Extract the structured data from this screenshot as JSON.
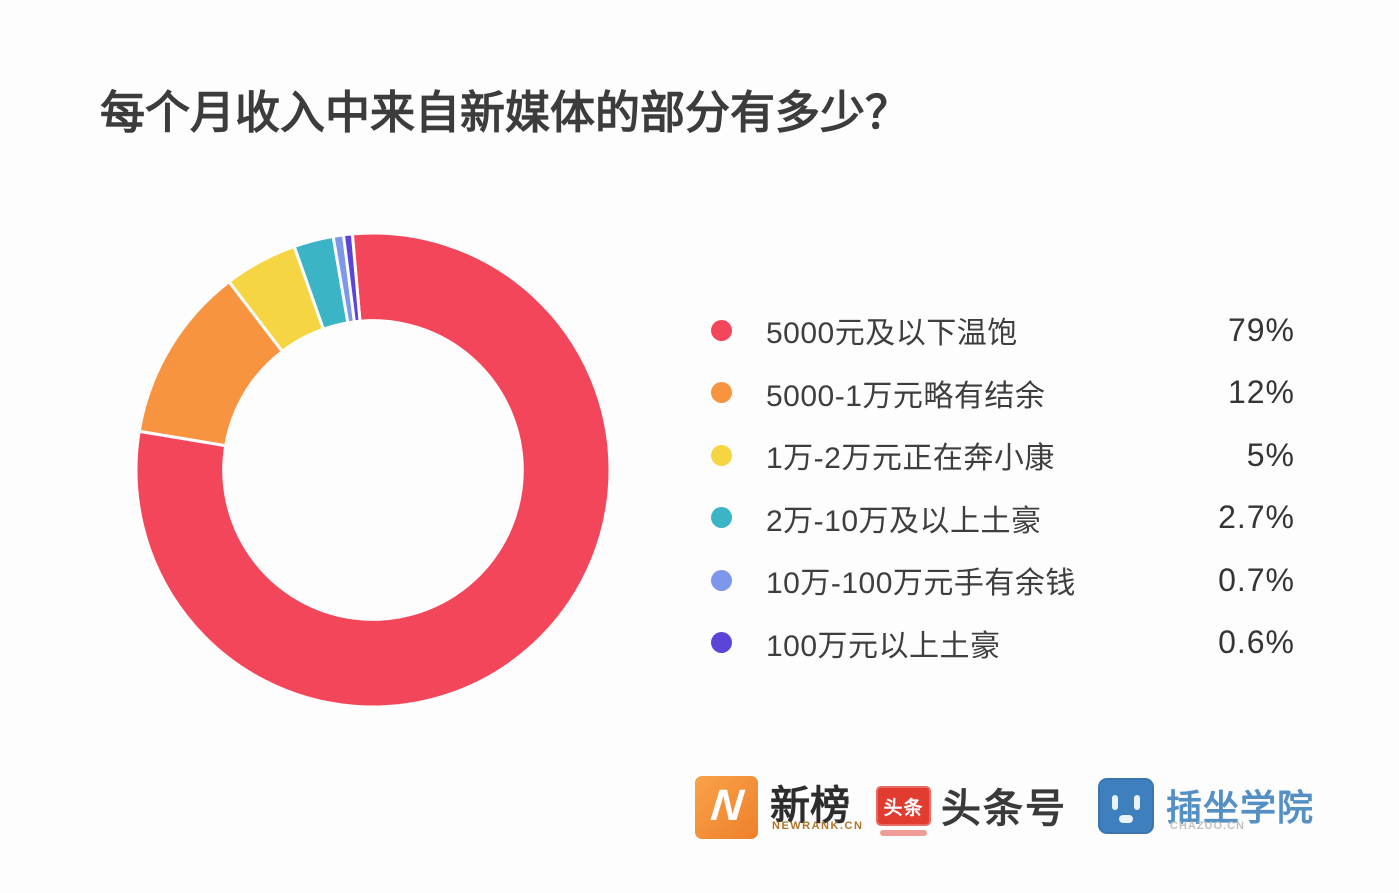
{
  "title": "每个月收入中来自新媒体的部分有多少？",
  "chart_data": {
    "type": "pie",
    "subtype": "donut",
    "title": "每个月收入中来自新媒体的部分有多少？",
    "direction": "clockwise",
    "start_angle_deg_from_top": -5,
    "inner_radius_ratio": 0.63,
    "legend_position": "right",
    "items": [
      {
        "label": "5000元及以下温饱",
        "value": 79,
        "value_label": "79%",
        "color": "#f4465a"
      },
      {
        "label": "5000-1万元略有结余",
        "value": 12,
        "value_label": "12%",
        "color": "#f8933f"
      },
      {
        "label": "1万-2万元正在奔小康",
        "value": 5,
        "value_label": "5%",
        "color": "#f6d542"
      },
      {
        "label": "2万-10万及以上土豪",
        "value": 2.7,
        "value_label": "2.7%",
        "color": "#3bb5c6"
      },
      {
        "label": "10万-100万元手有余钱",
        "value": 0.7,
        "value_label": "0.7%",
        "color": "#7d97ea"
      },
      {
        "label": "100万元以上土豪",
        "value": 0.6,
        "value_label": "0.6%",
        "color": "#5a45d8"
      }
    ]
  },
  "footer": {
    "newrank": {
      "logo_letter": "N",
      "name": "新榜",
      "subtext": "NEWRANK.CN",
      "box_color": "#ee7f2b"
    },
    "toutiao": {
      "logo_text": "头条",
      "name": "头条号",
      "box_color": "#e23b30"
    },
    "chazuo": {
      "name": "插坐学院",
      "subtext": "CHAZUO.CN",
      "box_color": "#3e80be"
    }
  }
}
